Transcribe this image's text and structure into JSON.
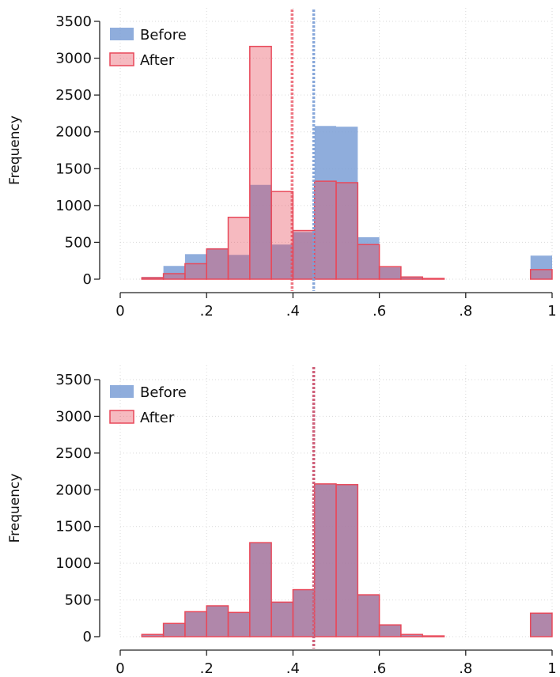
{
  "chart_data": [
    {
      "type": "bar",
      "ylabel": "Frequency",
      "xlim": [
        0,
        1
      ],
      "ylim": [
        0,
        3500
      ],
      "xticks": [
        "0",
        ".2",
        ".4",
        ".6",
        ".8",
        "1"
      ],
      "yticks": [
        "0",
        "500",
        "1000",
        "1500",
        "2000",
        "2500",
        "3000",
        "3500"
      ],
      "grid": true,
      "legend": "top-left",
      "bin_width": 0.05,
      "series": [
        {
          "name": "Before",
          "color": "#7b9fd6",
          "bins": [
            {
              "x": 0.05,
              "v": 30
            },
            {
              "x": 0.1,
              "v": 180
            },
            {
              "x": 0.15,
              "v": 340
            },
            {
              "x": 0.2,
              "v": 420
            },
            {
              "x": 0.25,
              "v": 330
            },
            {
              "x": 0.3,
              "v": 1280
            },
            {
              "x": 0.35,
              "v": 470
            },
            {
              "x": 0.4,
              "v": 640
            },
            {
              "x": 0.45,
              "v": 2080
            },
            {
              "x": 0.5,
              "v": 2070
            },
            {
              "x": 0.55,
              "v": 570
            },
            {
              "x": 0.6,
              "v": 160
            },
            {
              "x": 0.65,
              "v": 30
            },
            {
              "x": 0.7,
              "v": 10
            },
            {
              "x": 0.95,
              "v": 320
            }
          ],
          "mean_line": 0.448
        },
        {
          "name": "After",
          "color": "#e8495a",
          "bins": [
            {
              "x": 0.05,
              "v": 20
            },
            {
              "x": 0.1,
              "v": 75
            },
            {
              "x": 0.15,
              "v": 210
            },
            {
              "x": 0.2,
              "v": 410
            },
            {
              "x": 0.25,
              "v": 840
            },
            {
              "x": 0.3,
              "v": 3160
            },
            {
              "x": 0.35,
              "v": 1190
            },
            {
              "x": 0.4,
              "v": 660
            },
            {
              "x": 0.45,
              "v": 1330
            },
            {
              "x": 0.5,
              "v": 1310
            },
            {
              "x": 0.55,
              "v": 470
            },
            {
              "x": 0.6,
              "v": 170
            },
            {
              "x": 0.65,
              "v": 30
            },
            {
              "x": 0.7,
              "v": 10
            },
            {
              "x": 0.95,
              "v": 130
            }
          ],
          "mean_line": 0.398
        }
      ]
    },
    {
      "type": "bar",
      "ylabel": "Frequency",
      "xlim": [
        0,
        1
      ],
      "ylim": [
        0,
        3500
      ],
      "xticks": [
        "0",
        ".2",
        ".4",
        ".6",
        ".8",
        "1"
      ],
      "yticks": [
        "0",
        "500",
        "1000",
        "1500",
        "2000",
        "2500",
        "3000",
        "3500"
      ],
      "grid": true,
      "legend": "top-left",
      "bin_width": 0.05,
      "series": [
        {
          "name": "Before",
          "color": "#7b9fd6",
          "bins": [
            {
              "x": 0.05,
              "v": 30
            },
            {
              "x": 0.1,
              "v": 180
            },
            {
              "x": 0.15,
              "v": 340
            },
            {
              "x": 0.2,
              "v": 420
            },
            {
              "x": 0.25,
              "v": 330
            },
            {
              "x": 0.3,
              "v": 1280
            },
            {
              "x": 0.35,
              "v": 470
            },
            {
              "x": 0.4,
              "v": 640
            },
            {
              "x": 0.45,
              "v": 2080
            },
            {
              "x": 0.5,
              "v": 2070
            },
            {
              "x": 0.55,
              "v": 570
            },
            {
              "x": 0.6,
              "v": 160
            },
            {
              "x": 0.65,
              "v": 30
            },
            {
              "x": 0.7,
              "v": 10
            },
            {
              "x": 0.95,
              "v": 320
            }
          ],
          "mean_line": 0.448
        },
        {
          "name": "After",
          "color": "#e8495a",
          "bins": [
            {
              "x": 0.05,
              "v": 30
            },
            {
              "x": 0.1,
              "v": 180
            },
            {
              "x": 0.15,
              "v": 340
            },
            {
              "x": 0.2,
              "v": 420
            },
            {
              "x": 0.25,
              "v": 330
            },
            {
              "x": 0.3,
              "v": 1280
            },
            {
              "x": 0.35,
              "v": 470
            },
            {
              "x": 0.4,
              "v": 640
            },
            {
              "x": 0.45,
              "v": 2080
            },
            {
              "x": 0.5,
              "v": 2070
            },
            {
              "x": 0.55,
              "v": 570
            },
            {
              "x": 0.6,
              "v": 160
            },
            {
              "x": 0.65,
              "v": 30
            },
            {
              "x": 0.7,
              "v": 10
            },
            {
              "x": 0.95,
              "v": 320
            }
          ],
          "mean_line": 0.448
        }
      ]
    }
  ]
}
